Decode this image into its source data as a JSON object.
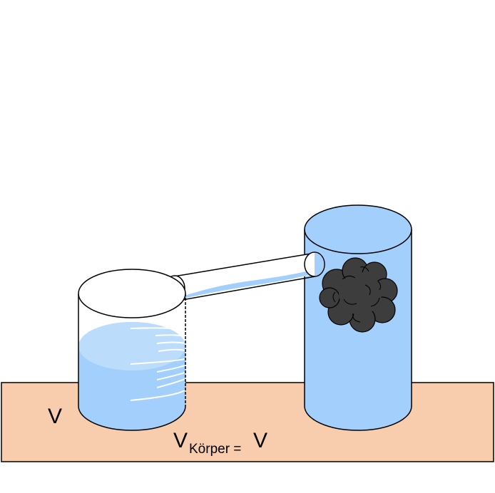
{
  "labels": {
    "v_left": "V",
    "equation_main": "V",
    "equation_subscript": "Körper =",
    "equation_right": "V"
  },
  "colors": {
    "table": "#f8cdae",
    "water": "#a3cffc",
    "water_top": "#bcdcfb",
    "rock": "#3d3d3d",
    "outline": "#000000",
    "scale_marks": "#ffffff"
  }
}
